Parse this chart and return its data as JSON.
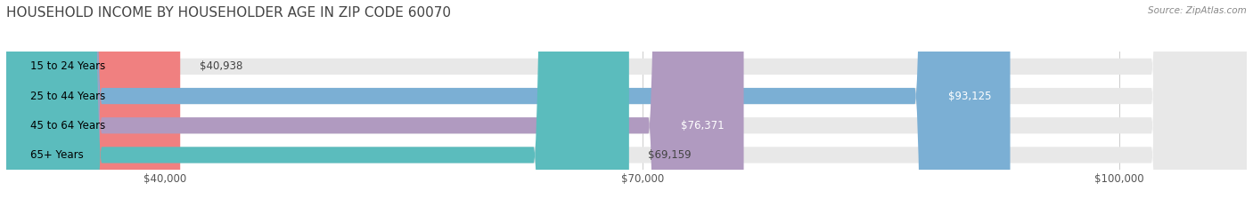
{
  "title": "HOUSEHOLD INCOME BY HOUSEHOLDER AGE IN ZIP CODE 60070",
  "source": "Source: ZipAtlas.com",
  "categories": [
    "15 to 24 Years",
    "25 to 44 Years",
    "45 to 64 Years",
    "65+ Years"
  ],
  "values": [
    40938,
    93125,
    76371,
    69159
  ],
  "bar_colors": [
    "#f08080",
    "#7bafd4",
    "#b09ac0",
    "#5bbcbd"
  ],
  "bar_bg_color": "#e8e8e8",
  "value_labels": [
    "$40,938",
    "$93,125",
    "$76,371",
    "$69,159"
  ],
  "value_inside": [
    false,
    true,
    true,
    false
  ],
  "xticks": [
    40000,
    70000,
    100000
  ],
  "xtick_labels": [
    "$40,000",
    "$70,000",
    "$100,000"
  ],
  "xmin": 30000,
  "xmax": 108000,
  "background_color": "#ffffff",
  "title_fontsize": 11,
  "bar_height": 0.55,
  "label_fontsize": 8.5
}
